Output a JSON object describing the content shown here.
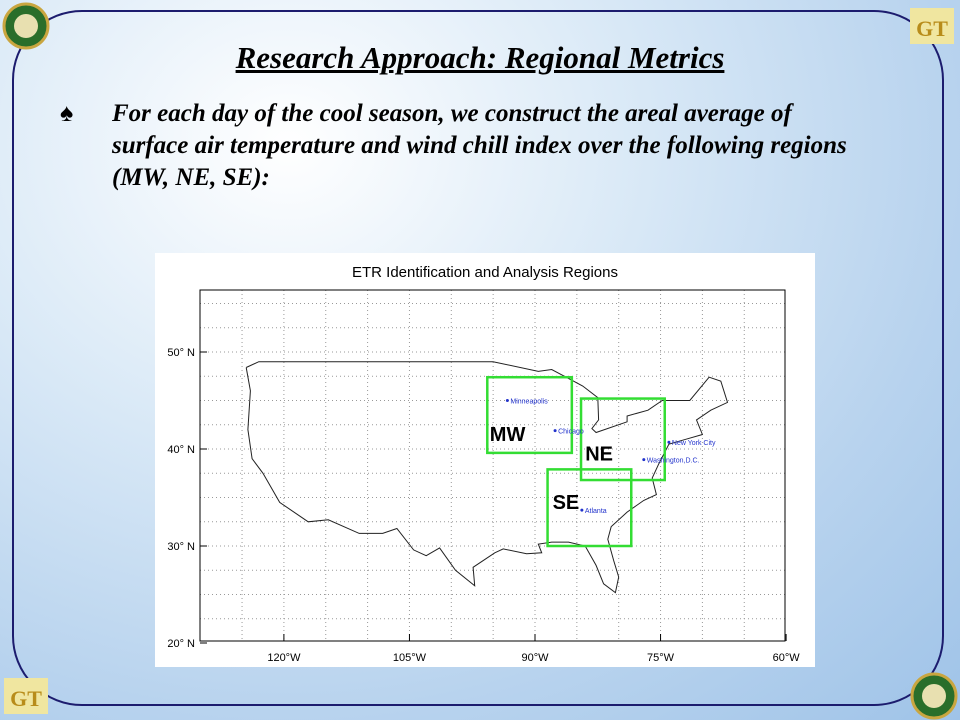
{
  "header": {
    "title": "Research  Approach:  Regional Metrics"
  },
  "bullet": {
    "symbol": "♠",
    "text": "For each day of the cool season, we construct the areal average of surface air temperature and wind chill index over the following regions (MW, NE, SE):"
  },
  "map": {
    "title": "ETR Identification and Analysis Regions",
    "lat_ticks": [
      {
        "value": 50,
        "label": "50° N"
      },
      {
        "value": 40,
        "label": "40° N"
      },
      {
        "value": 30,
        "label": "30° N"
      },
      {
        "value": 20,
        "label": "20° N"
      }
    ],
    "lon_ticks": [
      {
        "value": -120,
        "label": "120°W"
      },
      {
        "value": -105,
        "label": "105°W"
      },
      {
        "value": -90,
        "label": "90°W"
      },
      {
        "value": -75,
        "label": "75°W"
      },
      {
        "value": -60,
        "label": "60°W"
      }
    ],
    "regions": [
      "MW",
      "NE",
      "SE"
    ],
    "cities": [
      "Minneapolis",
      "Chicago",
      "New York City",
      "Washington,D.C.",
      "Atlanta"
    ]
  }
}
